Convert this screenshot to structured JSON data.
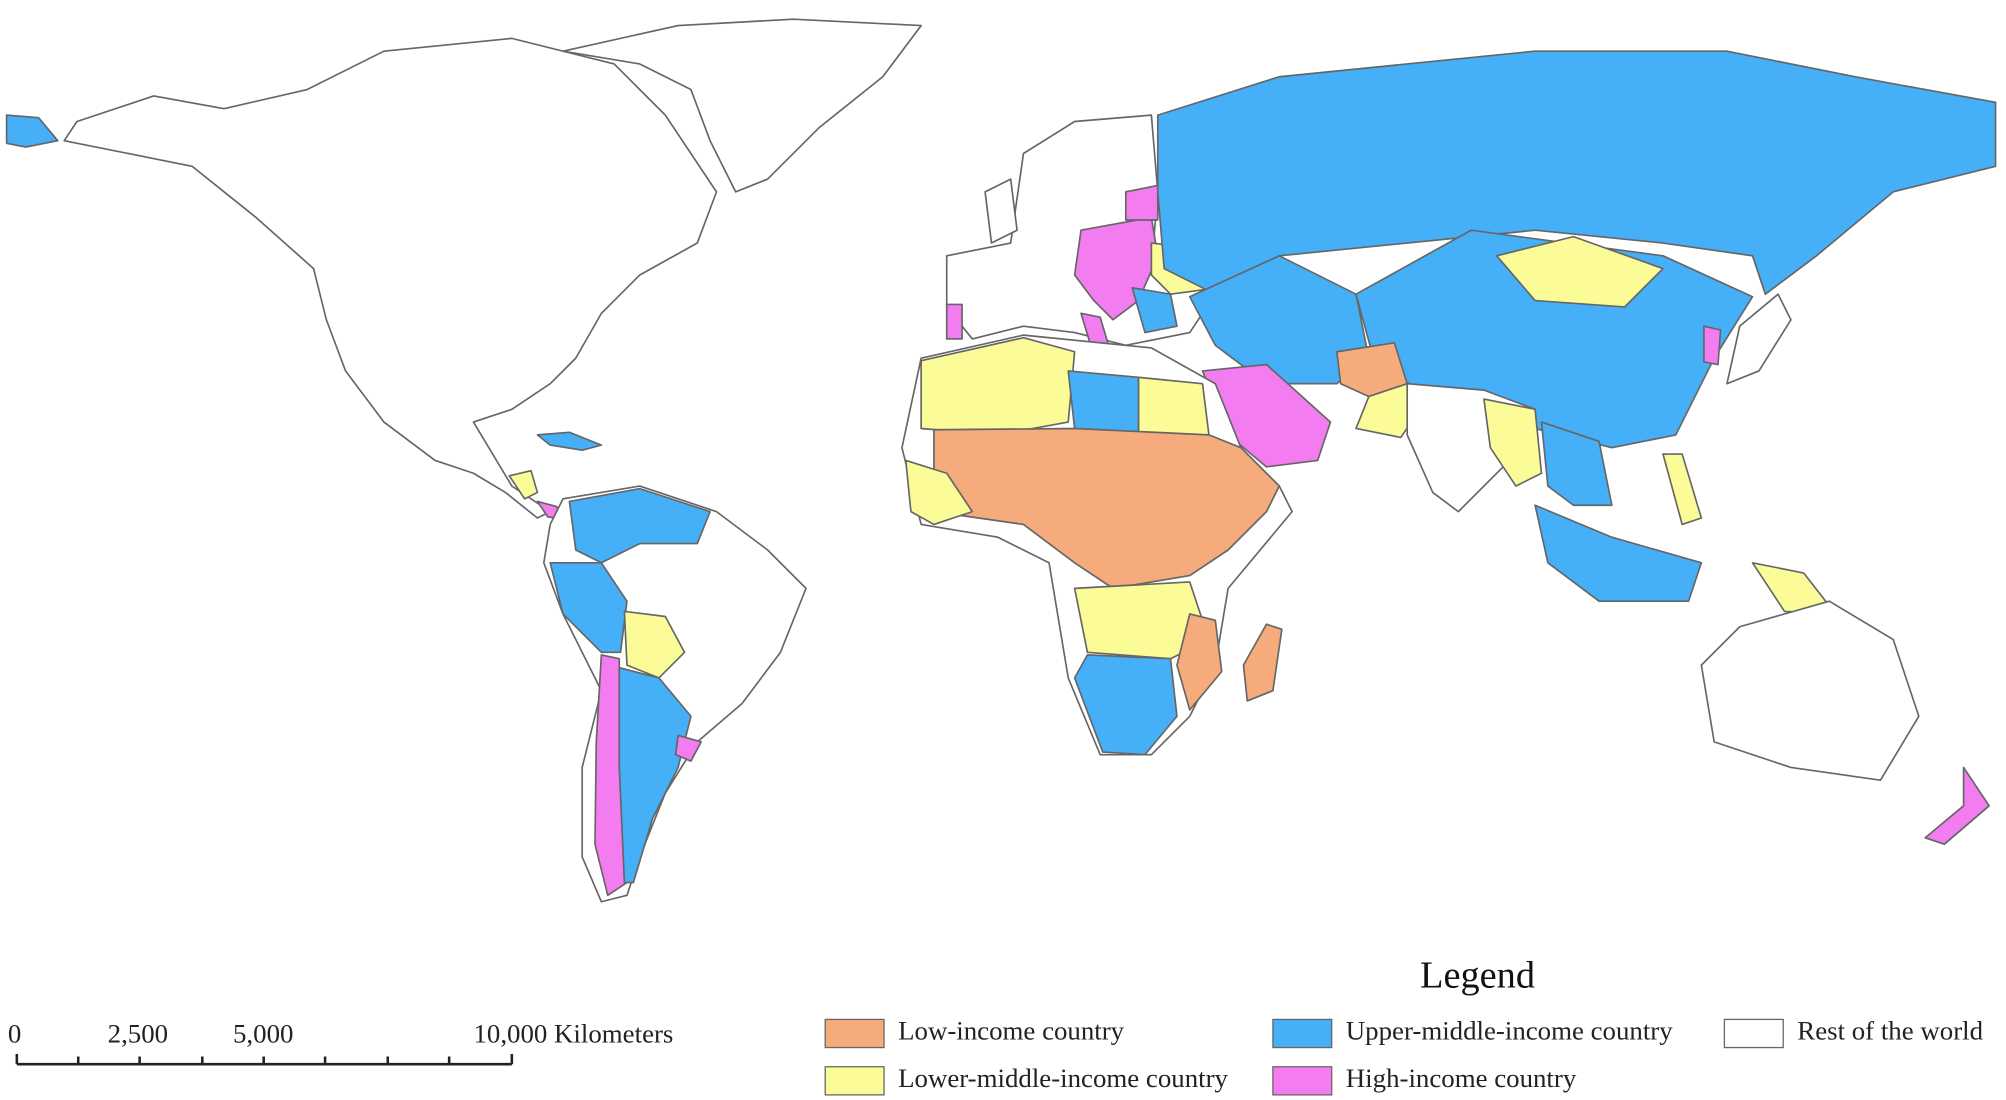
{
  "legend": {
    "title": "Legend",
    "items": [
      {
        "label": "Low-income country",
        "color": "#f5ab7c"
      },
      {
        "label": "Lower-middle-income country",
        "color": "#fbfb98"
      },
      {
        "label": "Upper-middle-income country",
        "color": "#45aff7"
      },
      {
        "label": "High-income country",
        "color": "#f37cf1"
      },
      {
        "label": "Rest of the world",
        "color": "#ffffff"
      }
    ]
  },
  "scale": {
    "labels": [
      "0",
      "2,500",
      "5,000",
      "10,000 Kilometers"
    ]
  }
}
